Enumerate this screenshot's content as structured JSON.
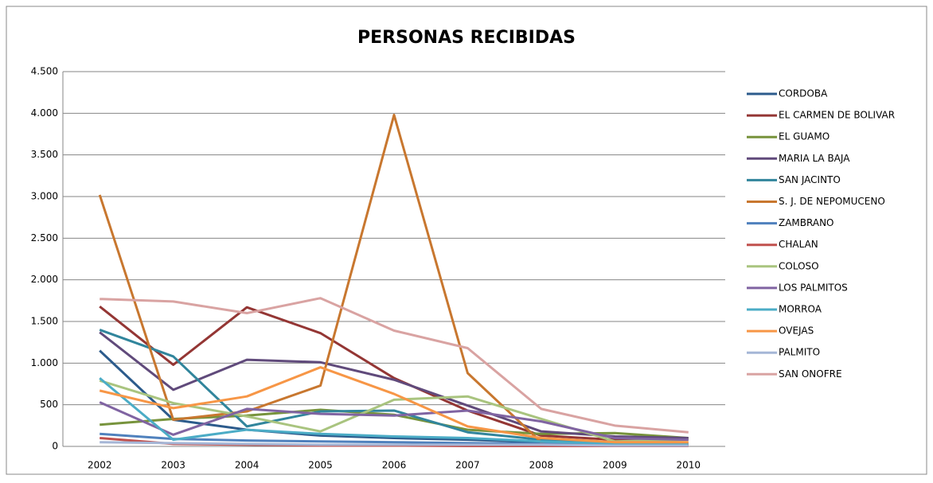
{
  "chart_data": {
    "type": "line",
    "title": "PERSONAS RECIBIDAS",
    "categories": [
      "2002",
      "2003",
      "2004",
      "2005",
      "2006",
      "2007",
      "2008",
      "2009",
      "2010"
    ],
    "ylim": [
      0,
      4500
    ],
    "yticks": [
      0,
      500,
      {
        "value": 1000,
        "label": "1.000"
      },
      {
        "value": 1500,
        "label": "1.500"
      },
      {
        "value": 2000,
        "label": "2.000"
      },
      {
        "value": 2500,
        "label": "2.500"
      },
      {
        "value": 3000,
        "label": "3.000"
      },
      {
        "value": 3500,
        "label": "3.500"
      },
      {
        "value": 4000,
        "label": "4.000"
      },
      {
        "value": 4500,
        "label": "4.500"
      }
    ],
    "grid": true,
    "legend": "right",
    "series": [
      {
        "name": "CORDOBA",
        "color": "#2c5b8c",
        "values": [
          1150,
          320,
          200,
          130,
          100,
          80,
          50,
          30,
          20
        ]
      },
      {
        "name": "EL CARMEN DE BOLIVAR",
        "color": "#943634",
        "values": [
          1680,
          980,
          1670,
          1360,
          820,
          430,
          130,
          80,
          90
        ]
      },
      {
        "name": "EL GUAMO",
        "color": "#77933c",
        "values": [
          260,
          330,
          370,
          440,
          380,
          200,
          150,
          160,
          100
        ]
      },
      {
        "name": "MARIA LA BAJA",
        "color": "#604a7b",
        "values": [
          1370,
          680,
          1040,
          1010,
          800,
          490,
          180,
          120,
          100
        ]
      },
      {
        "name": "SAN JACINTO",
        "color": "#31859c",
        "values": [
          1400,
          1080,
          240,
          420,
          430,
          170,
          80,
          50,
          40
        ]
      },
      {
        "name": "S. J. DE NEPOMUCENO",
        "color": "#c8772f",
        "values": [
          3020,
          320,
          420,
          730,
          3980,
          880,
          50,
          30,
          20
        ]
      },
      {
        "name": "ZAMBRANO",
        "color": "#4f81bd",
        "values": [
          150,
          90,
          70,
          60,
          50,
          40,
          30,
          20,
          20
        ]
      },
      {
        "name": "CHALAN",
        "color": "#c0504d",
        "values": [
          100,
          30,
          20,
          10,
          10,
          5,
          5,
          5,
          5
        ]
      },
      {
        "name": "COLOSO",
        "color": "#a9c47f",
        "values": [
          790,
          520,
          360,
          180,
          560,
          600,
          330,
          60,
          80
        ]
      },
      {
        "name": "LOS PALMITOS",
        "color": "#8064a2",
        "values": [
          530,
          140,
          450,
          390,
          370,
          430,
          300,
          100,
          80
        ]
      },
      {
        "name": "MORROA",
        "color": "#4bacc6",
        "values": [
          820,
          80,
          200,
          150,
          120,
          100,
          60,
          30,
          30
        ]
      },
      {
        "name": "OVEJAS",
        "color": "#f79646",
        "values": [
          670,
          460,
          600,
          950,
          630,
          240,
          100,
          50,
          50
        ]
      },
      {
        "name": "PALMITO",
        "color": "#a5b6d6",
        "values": [
          50,
          40,
          30,
          20,
          20,
          20,
          20,
          10,
          10
        ]
      },
      {
        "name": "SAN ONOFRE",
        "color": "#d9a3a2",
        "values": [
          1770,
          1740,
          1600,
          1780,
          1390,
          1180,
          450,
          250,
          170
        ]
      }
    ]
  }
}
